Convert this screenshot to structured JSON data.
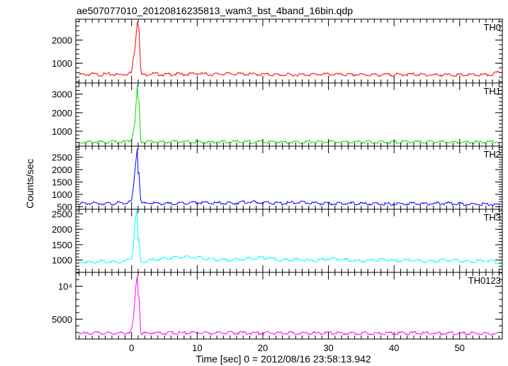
{
  "chart_data": {
    "type": "line",
    "title": "ae507077010_20120816235813_wam3_bst_4band_16bin.qdp",
    "xlabel": "Time [sec] 0 = 2012/08/16 23:58:13.942",
    "ylabel": "Counts/sec",
    "xlim": [
      -8.5,
      56.5
    ],
    "x_ticks": [
      0,
      10,
      20,
      30,
      40,
      50
    ],
    "x_minor_step": 1,
    "x_tick_labels": [
      "0",
      "10",
      "20",
      "30",
      "40",
      "50"
    ],
    "grid": false,
    "legend": "none",
    "panels": [
      {
        "label": "TH0",
        "color": "#ff0000",
        "ylim": [
          150,
          2900
        ],
        "y_ticks": [
          1000,
          2000
        ],
        "y_tick_labels": [
          "1000",
          "2000"
        ],
        "y_minor_step": 200,
        "x": [
          -8,
          -7,
          -6,
          -5,
          -4,
          -3,
          -2,
          -1,
          -0.5,
          0,
          0.3,
          0.5,
          0.7,
          0.9,
          1.0,
          1.2,
          1.3,
          1.5,
          2,
          3,
          4,
          5,
          6,
          7,
          8,
          10,
          12,
          15,
          18,
          20,
          23,
          25,
          28,
          30,
          33,
          35,
          38,
          40,
          43,
          45,
          48,
          50,
          52,
          54,
          55,
          56
        ],
        "values": [
          520,
          510,
          540,
          500,
          530,
          520,
          510,
          530,
          560,
          600,
          1300,
          1650,
          2300,
          2880,
          2700,
          2450,
          900,
          520,
          500,
          560,
          530,
          510,
          520,
          540,
          520,
          560,
          520,
          550,
          530,
          520,
          500,
          510,
          520,
          530,
          500,
          510,
          500,
          510,
          520,
          500,
          500,
          490,
          500,
          490,
          520,
          620
        ]
      },
      {
        "label": "TH1",
        "color": "#00e000",
        "ylim": [
          200,
          3600
        ],
        "y_ticks": [
          1000,
          2000,
          3000
        ],
        "y_tick_labels": [
          "1000",
          "2000",
          "3000"
        ],
        "y_minor_step": 200,
        "x": [
          -8,
          -7,
          -6,
          -5,
          -4,
          -3,
          -2,
          -1,
          -0.5,
          0,
          0.3,
          0.5,
          0.7,
          0.9,
          1.0,
          1.2,
          1.3,
          1.5,
          2,
          3,
          5,
          7,
          10,
          12,
          15,
          18,
          20,
          23,
          25,
          28,
          30,
          33,
          35,
          38,
          40,
          43,
          45,
          48,
          50,
          52,
          54,
          56
        ],
        "values": [
          420,
          410,
          430,
          420,
          410,
          440,
          420,
          430,
          460,
          520,
          1100,
          1400,
          2600,
          3550,
          2700,
          2600,
          800,
          430,
          420,
          450,
          420,
          440,
          430,
          420,
          440,
          430,
          420,
          430,
          420,
          440,
          430,
          420,
          430,
          410,
          420,
          430,
          420,
          430,
          420,
          410,
          430,
          420
        ]
      },
      {
        "label": "TH2",
        "color": "#0000ff",
        "ylim": [
          400,
          2950
        ],
        "y_ticks": [
          500,
          1000,
          1500,
          2000,
          2500
        ],
        "y_tick_labels": [
          "500",
          "1000",
          "1500",
          "2000",
          "2500"
        ],
        "y_minor_step": 100,
        "x": [
          -8,
          -7,
          -6,
          -5,
          -4,
          -3,
          -2,
          -1,
          -0.5,
          0,
          0.3,
          0.5,
          0.7,
          0.9,
          1.0,
          1.2,
          1.3,
          1.5,
          2,
          3,
          5,
          7,
          10,
          12,
          15,
          18,
          20,
          23,
          25,
          28,
          30,
          33,
          35,
          38,
          40,
          43,
          45,
          48,
          50,
          52,
          54,
          56
        ],
        "values": [
          640,
          620,
          650,
          630,
          640,
          620,
          650,
          640,
          680,
          720,
          1300,
          1900,
          2500,
          2920,
          1850,
          1900,
          900,
          640,
          630,
          650,
          620,
          640,
          680,
          650,
          640,
          700,
          660,
          640,
          680,
          650,
          620,
          640,
          630,
          610,
          620,
          630,
          620,
          640,
          620,
          600,
          610,
          560
        ]
      },
      {
        "label": "TH3",
        "color": "#00ffff",
        "ylim": [
          600,
          2650
        ],
        "y_ticks": [
          1000,
          1500,
          2000,
          2500
        ],
        "y_tick_labels": [
          "1000",
          "1500",
          "2000",
          "2500"
        ],
        "y_minor_step": 100,
        "x": [
          -8,
          -7,
          -6,
          -5,
          -4,
          -3,
          -2,
          -1,
          -0.5,
          0,
          0.3,
          0.5,
          0.7,
          0.9,
          1.0,
          1.2,
          1.3,
          1.5,
          2,
          3,
          5,
          7,
          10,
          12,
          15,
          18,
          20,
          23,
          25,
          28,
          30,
          33,
          35,
          38,
          40,
          43,
          45,
          48,
          50,
          52,
          54,
          56
        ],
        "values": [
          900,
          950,
          920,
          980,
          940,
          960,
          930,
          970,
          1000,
          1050,
          1500,
          2100,
          2500,
          2650,
          1600,
          1650,
          1000,
          920,
          960,
          1000,
          1050,
          1100,
          1080,
          1020,
          1000,
          1050,
          1080,
          1000,
          1020,
          980,
          1050,
          1000,
          960,
          1020,
          980,
          1000,
          950,
          1000,
          980,
          950,
          1000,
          920
        ]
      },
      {
        "label": "TH0123",
        "color": "#ff00ff",
        "ylim": [
          2000,
          12100
        ],
        "y_ticks": [
          5000,
          10000
        ],
        "y_tick_labels": [
          "5000",
          "10⁴"
        ],
        "y_minor_step": 1000,
        "x": [
          -8,
          -7,
          -6,
          -5,
          -4,
          -3,
          -2,
          -1,
          -0.5,
          0,
          0.3,
          0.5,
          0.7,
          0.9,
          1.0,
          1.2,
          1.3,
          1.5,
          2,
          3,
          5,
          7,
          10,
          12,
          15,
          18,
          20,
          23,
          25,
          28,
          30,
          33,
          35,
          38,
          40,
          43,
          45,
          48,
          50,
          52,
          54,
          56
        ],
        "values": [
          2900,
          2850,
          2950,
          2880,
          2900,
          2870,
          2950,
          2900,
          3000,
          3300,
          5200,
          8000,
          10500,
          12000,
          8600,
          8400,
          3500,
          2900,
          2880,
          2950,
          2900,
          2920,
          2980,
          2900,
          2950,
          2920,
          2900,
          2940,
          2880,
          2900,
          2920,
          2880,
          2900,
          2870,
          2880,
          2900,
          2860,
          2880,
          2870,
          2850,
          2860,
          2840
        ]
      }
    ]
  }
}
